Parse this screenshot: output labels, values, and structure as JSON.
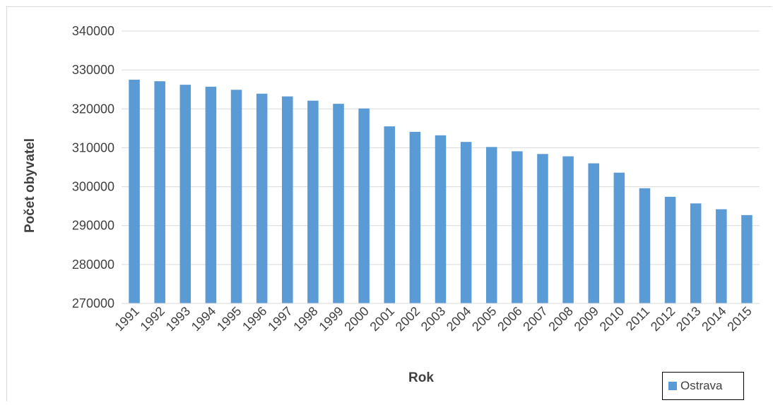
{
  "chart_data": {
    "type": "bar",
    "categories": [
      "1991",
      "1992",
      "1993",
      "1994",
      "1995",
      "1996",
      "1997",
      "1998",
      "1999",
      "2000",
      "2001",
      "2002",
      "2003",
      "2004",
      "2005",
      "2006",
      "2007",
      "2008",
      "2009",
      "2010",
      "2011",
      "2012",
      "2013",
      "2014",
      "2015"
    ],
    "series": [
      {
        "name": "Ostrava",
        "color": "#5b9bd5",
        "values": [
          327500,
          327100,
          326200,
          325700,
          324900,
          323900,
          323200,
          322100,
          321300,
          320100,
          315500,
          314100,
          313200,
          311500,
          310200,
          309100,
          308400,
          307800,
          306000,
          303600,
          299600,
          297400,
          295700,
          294200,
          292700
        ]
      }
    ],
    "xlabel": "Rok",
    "ylabel": "Počet obyvatel",
    "ylim": [
      270000,
      340000
    ],
    "yticks": [
      "270000",
      "280000",
      "290000",
      "300000",
      "310000",
      "320000",
      "330000",
      "340000"
    ],
    "grid": true,
    "legend_position": "bottom-right"
  }
}
